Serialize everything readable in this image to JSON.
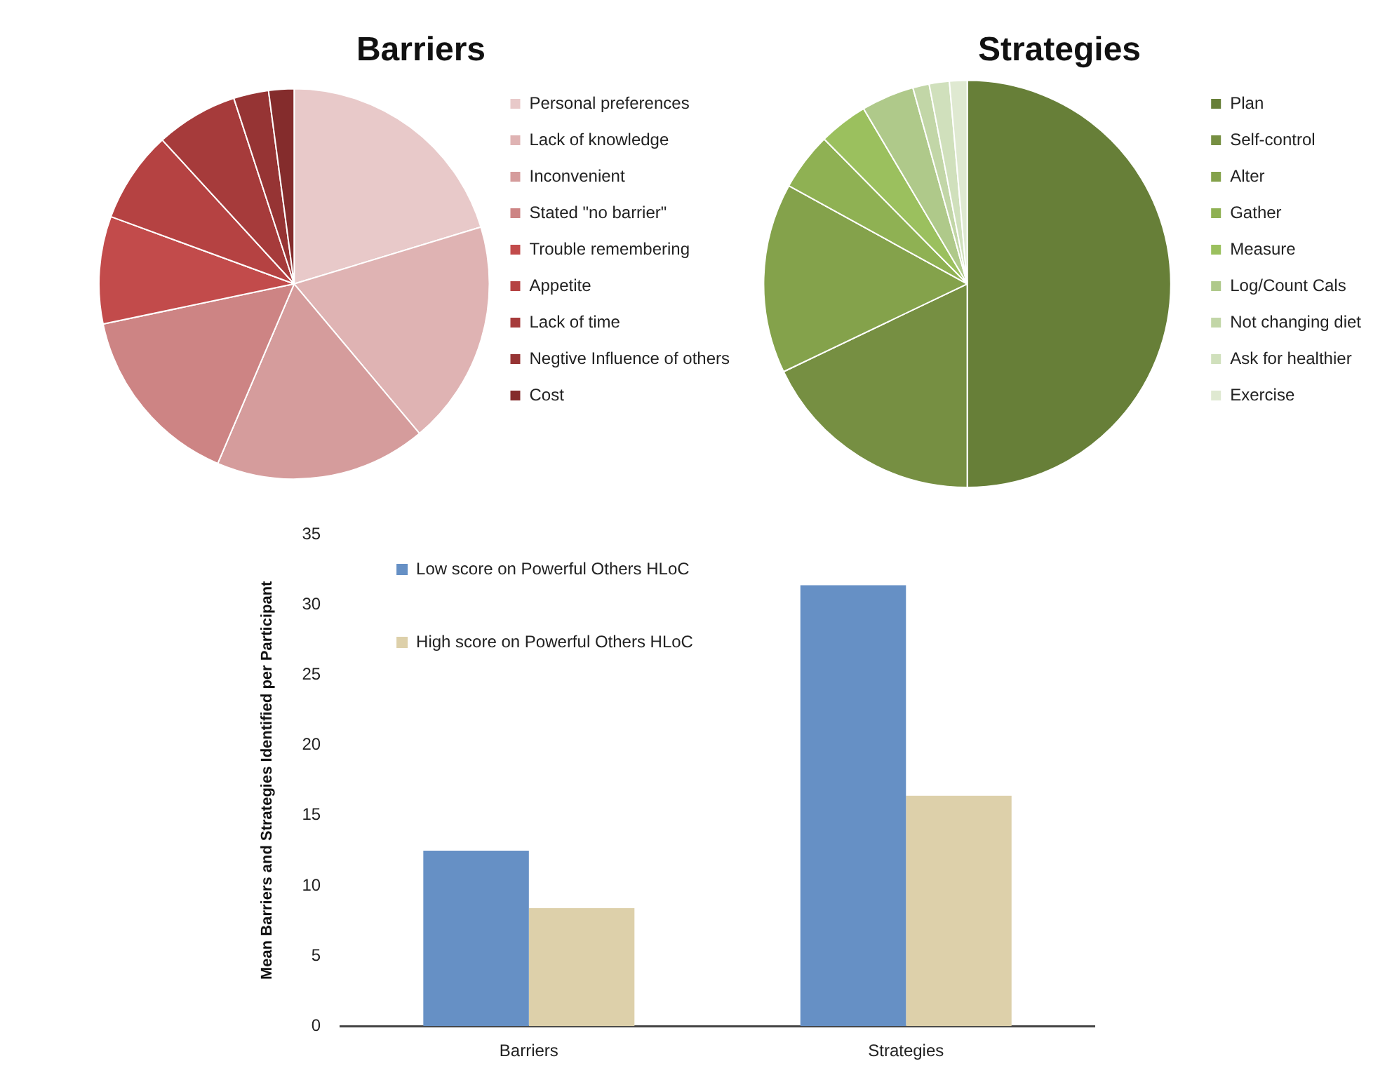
{
  "chart_data": [
    {
      "type": "pie",
      "title": "Barriers",
      "categories": [
        "Personal preferences",
        "Lack of knowledge",
        "Inconvenient",
        "Stated \"no barrier\"",
        "Trouble remembering",
        "Appetite",
        "Lack of time",
        "Negtive Influence of others",
        "Cost"
      ],
      "values": [
        20.3,
        18.6,
        17.5,
        15.3,
        8.9,
        7.6,
        6.8,
        2.9,
        2.1
      ],
      "colors": [
        "#e8c9c9",
        "#dfb3b3",
        "#d59c9c",
        "#cd8484",
        "#c24b4b",
        "#b54242",
        "#a63b3b",
        "#963434",
        "#842c2c"
      ],
      "legend": "right"
    },
    {
      "type": "pie",
      "title": "Strategies",
      "categories": [
        "Plan",
        "Self-control",
        "Alter",
        "Gather",
        "Measure",
        "Log/Count Cals",
        "Not changing diet",
        "Ask for healthier",
        "Exercise"
      ],
      "values": [
        50.0,
        17.9,
        15.1,
        4.6,
        3.9,
        4.2,
        1.3,
        1.6,
        1.4
      ],
      "colors": [
        "#677f38",
        "#768f42",
        "#84a24b",
        "#8fb153",
        "#9bc05e",
        "#afc98a",
        "#c2d6a7",
        "#d0e0bc",
        "#dfe9d1"
      ],
      "legend": "right"
    },
    {
      "type": "bar",
      "categories": [
        "Barriers",
        "Strategies"
      ],
      "ylabel": "Mean Barriers and Strategies Identified per Participant",
      "ylim": [
        0,
        35
      ],
      "yticks": [
        0,
        5,
        10,
        15,
        20,
        25,
        30,
        35
      ],
      "grid": false,
      "legend": "top left",
      "series": [
        {
          "name": "Low score on Powerful Others HLoC",
          "color": "#6690c5",
          "values": [
            12.5,
            31.4
          ]
        },
        {
          "name": "High score on Powerful Others HLoC",
          "color": "#ddd0aa",
          "values": [
            8.4,
            16.4
          ]
        }
      ]
    }
  ]
}
